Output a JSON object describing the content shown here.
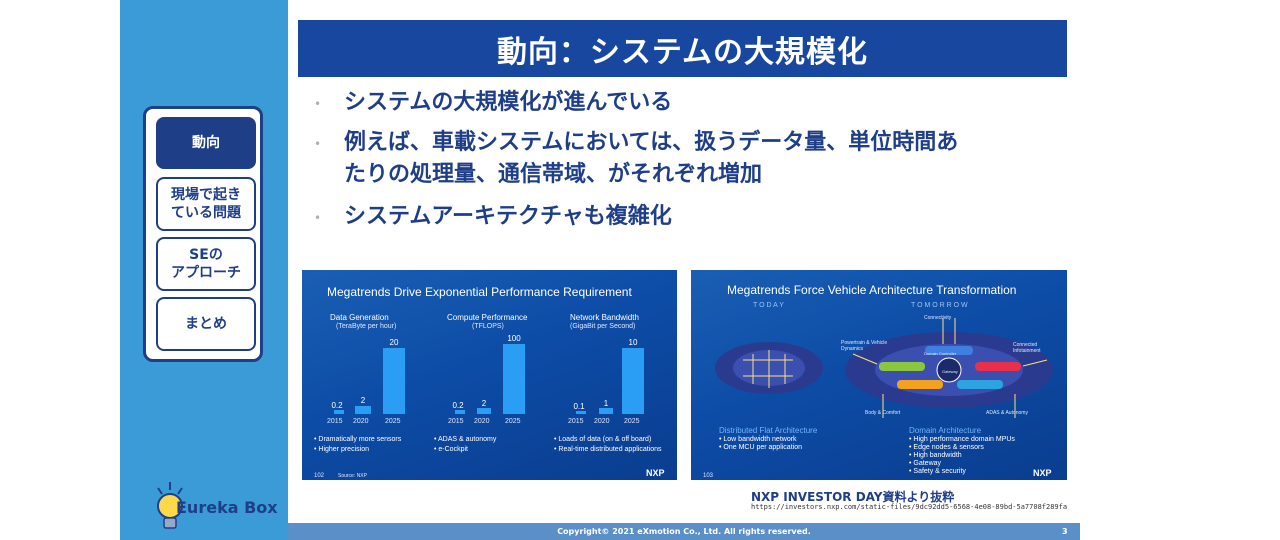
{
  "title": "動向：システムの大規模化",
  "nav": {
    "items": [
      {
        "label": "動向",
        "active": true
      },
      {
        "label": "現場で起き\nている問題",
        "active": false
      },
      {
        "label": "SEの\nアプローチ",
        "active": false
      },
      {
        "label": "まとめ",
        "active": false
      }
    ]
  },
  "bullets": [
    "システムの大規模化が進んでいる",
    "例えば、車載システムにおいては、扱うデータ量、単位時間あ",
    "たりの処理量、通信帯域、がそれぞれ増加",
    "システムアーキテクチャも複雑化"
  ],
  "logo": {
    "text": "Eureka Box"
  },
  "slide1": {
    "title": "Megatrends Drive Exponential Performance Requirement",
    "groups": [
      {
        "name": "Data Generation",
        "unit": "(TeraByte per hour)",
        "values": [
          "0.2",
          "2",
          "20"
        ],
        "years": [
          "2015",
          "2020",
          "2025"
        ],
        "notes": [
          "•  Dramatically more sensors",
          "•  Higher precision"
        ]
      },
      {
        "name": "Compute Performance",
        "unit": "(TFLOPS)",
        "values": [
          "0.2",
          "2",
          "100"
        ],
        "years": [
          "2015",
          "2020",
          "2025"
        ],
        "notes": [
          "•  ADAS & autonomy",
          "•  e-Cockpit"
        ]
      },
      {
        "name": "Network Bandwidth",
        "unit": "(GigaBit per Second)",
        "values": [
          "0.1",
          "1",
          "10"
        ],
        "years": [
          "2015",
          "2020",
          "2025"
        ],
        "notes": [
          "•  Loads of data (on & off board)",
          "•  Real-time distributed applications"
        ]
      }
    ],
    "page": "102",
    "source": "Source: NXP",
    "brand": "NXP"
  },
  "slide2": {
    "title": "Megatrends Force Vehicle Architecture Transformation",
    "today": "T O D A Y",
    "tomorrow": "T O M O R R O W",
    "labels": {
      "connectivity": "Connectivity",
      "powertrain": "Powertrain & Vehicle\nDynamics",
      "connected": "Connected\nInfotainment",
      "body": "Body & Comfort",
      "adas": "ADAS & Autonomy",
      "gateway": "Gateway",
      "domain": "Domain Controller"
    },
    "left_heading": "Distributed Flat Architecture",
    "left_notes": [
      "•  Low bandwidth network",
      "•  One MCU per application"
    ],
    "right_heading": "Domain Architecture",
    "right_notes": [
      "•  High performance domain MPUs",
      "•  Edge nodes & sensors",
      "•  High bandwidth",
      "•  Gateway",
      "•  Safety & security"
    ],
    "page": "103",
    "brand": "NXP"
  },
  "source": {
    "text": "NXP INVESTOR DAY資料より抜粋",
    "url": "https://investors.nxp.com/static-files/9dc92dd5-6568-4e08-89bd-5a7708f289fa"
  },
  "footer": {
    "copyright": "Copyright© 2021 eXmotion Co., Ltd. All rights reserved.",
    "page": "3"
  },
  "colors": {
    "navy": "#1f3e88",
    "title_bg": "#17479e",
    "sidebar": "#3a9bd6",
    "footer": "#5a8fc8"
  }
}
